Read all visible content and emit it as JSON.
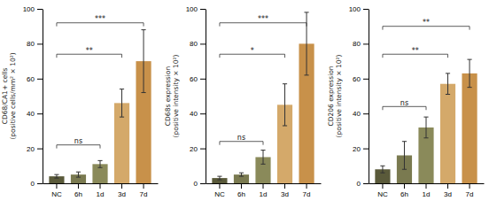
{
  "chart_data": [
    {
      "type": "bar",
      "ylabel": "CD68/CA1+ cells\n(positive cells/mm² × 10²)",
      "categories": [
        "NC",
        "6h",
        "1d",
        "3d",
        "7d"
      ],
      "values": [
        4,
        5,
        11,
        46,
        70
      ],
      "errors": [
        1,
        1.5,
        2,
        8,
        18
      ],
      "colors": [
        "#5a5a3a",
        "#7a7a50",
        "#8a8a5a",
        "#d4a96a",
        "#c8914a"
      ],
      "ylim": [
        0,
        100
      ],
      "yticks": [
        0,
        20,
        40,
        60,
        80,
        100
      ],
      "annotations": [
        {
          "text": "ns",
          "start": "NC",
          "end": "1d",
          "y": 20
        },
        {
          "text": "**",
          "start": "NC",
          "end": "3d",
          "y": 72
        },
        {
          "text": "***",
          "start": "NC",
          "end": "7d",
          "y": 90
        }
      ]
    },
    {
      "type": "bar",
      "ylabel": "CD68s expression\n(positive intensity × 10²)",
      "categories": [
        "NC",
        "6h",
        "1d",
        "3d",
        "7d"
      ],
      "values": [
        3,
        5,
        15,
        45,
        80
      ],
      "errors": [
        1,
        1,
        4,
        12,
        18
      ],
      "colors": [
        "#5a5a3a",
        "#7a7a50",
        "#8a8a5a",
        "#d4a96a",
        "#c8914a"
      ],
      "ylim": [
        0,
        100
      ],
      "yticks": [
        0,
        20,
        40,
        60,
        80,
        100
      ],
      "annotations": [
        {
          "text": "ns",
          "start": "NC",
          "end": "1d",
          "y": 22
        },
        {
          "text": "*",
          "start": "NC",
          "end": "3d",
          "y": 72
        },
        {
          "text": "***",
          "start": "NC",
          "end": "7d",
          "y": 90
        }
      ]
    },
    {
      "type": "bar",
      "ylabel": "CD206 expression\n(positive intensity × 10²)",
      "categories": [
        "NC",
        "6h",
        "1d",
        "3d",
        "7d"
      ],
      "values": [
        8,
        16,
        32,
        57,
        63
      ],
      "errors": [
        2,
        8,
        6,
        6,
        8
      ],
      "colors": [
        "#5a5a3a",
        "#7a7a50",
        "#8a8a5a",
        "#d4a96a",
        "#c8914a"
      ],
      "ylim": [
        0,
        100
      ],
      "yticks": [
        0,
        20,
        40,
        60,
        80,
        100
      ],
      "annotations": [
        {
          "text": "ns",
          "start": "NC",
          "end": "1d",
          "y": 42
        },
        {
          "text": "**",
          "start": "NC",
          "end": "3d",
          "y": 72
        },
        {
          "text": "**",
          "start": "NC",
          "end": "7d",
          "y": 88
        }
      ]
    }
  ]
}
